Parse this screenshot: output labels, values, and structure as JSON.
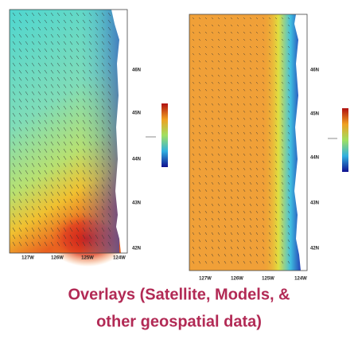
{
  "maps": [
    {
      "lat_labels": [
        "46N",
        "45N",
        "44N",
        "43N",
        "42N"
      ],
      "lon_labels": [
        "127W",
        "126W",
        "125W",
        "124W"
      ]
    },
    {
      "lat_labels": [
        "46N",
        "45N",
        "44N",
        "43N",
        "42N"
      ],
      "lon_labels": [
        "127W",
        "126W",
        "125W",
        "124W"
      ]
    }
  ],
  "caption": {
    "line1": "Overlays (Satellite, Models, &",
    "line2": "other geospatial data)"
  }
}
